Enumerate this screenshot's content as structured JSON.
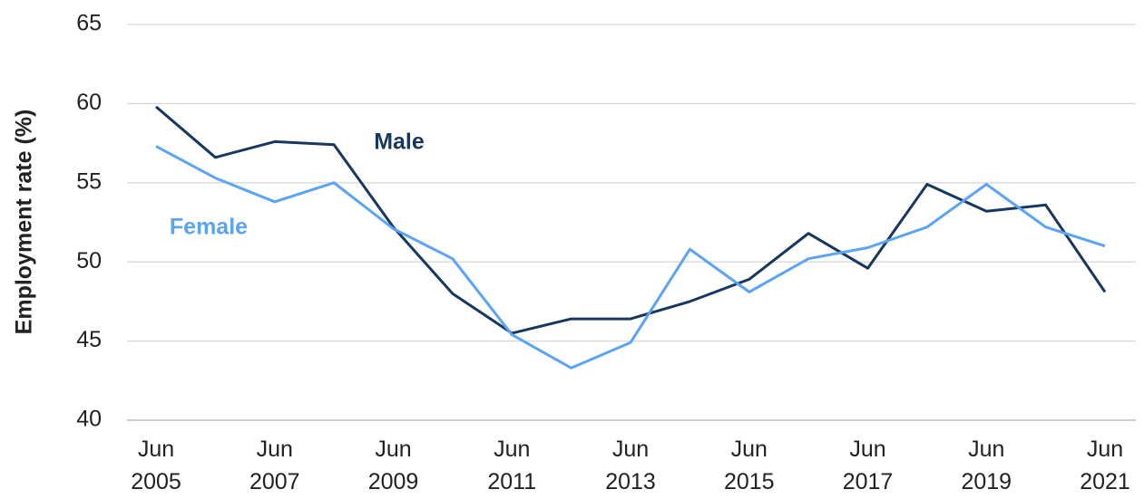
{
  "chart_data": {
    "type": "line",
    "ylabel": "Employment rate (%)",
    "categories": [
      "Jun 2005",
      null,
      "Jun 2007",
      null,
      "Jun 2009",
      null,
      "Jun 2011",
      null,
      "Jun 2013",
      null,
      "Jun 2015",
      null,
      "Jun 2017",
      null,
      "Jun 2019",
      null,
      "Jun 2021"
    ],
    "series": [
      {
        "name": "Male",
        "color": "#17375e",
        "values": [
          59.8,
          56.6,
          57.6,
          57.4,
          52.2,
          48.0,
          45.5,
          46.4,
          46.4,
          47.5,
          48.9,
          51.8,
          49.6,
          54.9,
          53.2,
          53.6,
          48.1
        ]
      },
      {
        "name": "Female",
        "color": "#5ba3f5",
        "values": [
          57.3,
          55.3,
          53.8,
          55.0,
          52.1,
          50.2,
          45.4,
          43.3,
          44.9,
          50.8,
          48.1,
          50.2,
          50.9,
          52.2,
          54.9,
          52.2,
          51.0
        ]
      }
    ],
    "ylim": [
      40,
      65
    ],
    "yticks": [
      40,
      45,
      50,
      55,
      60,
      65
    ],
    "grid": true
  }
}
